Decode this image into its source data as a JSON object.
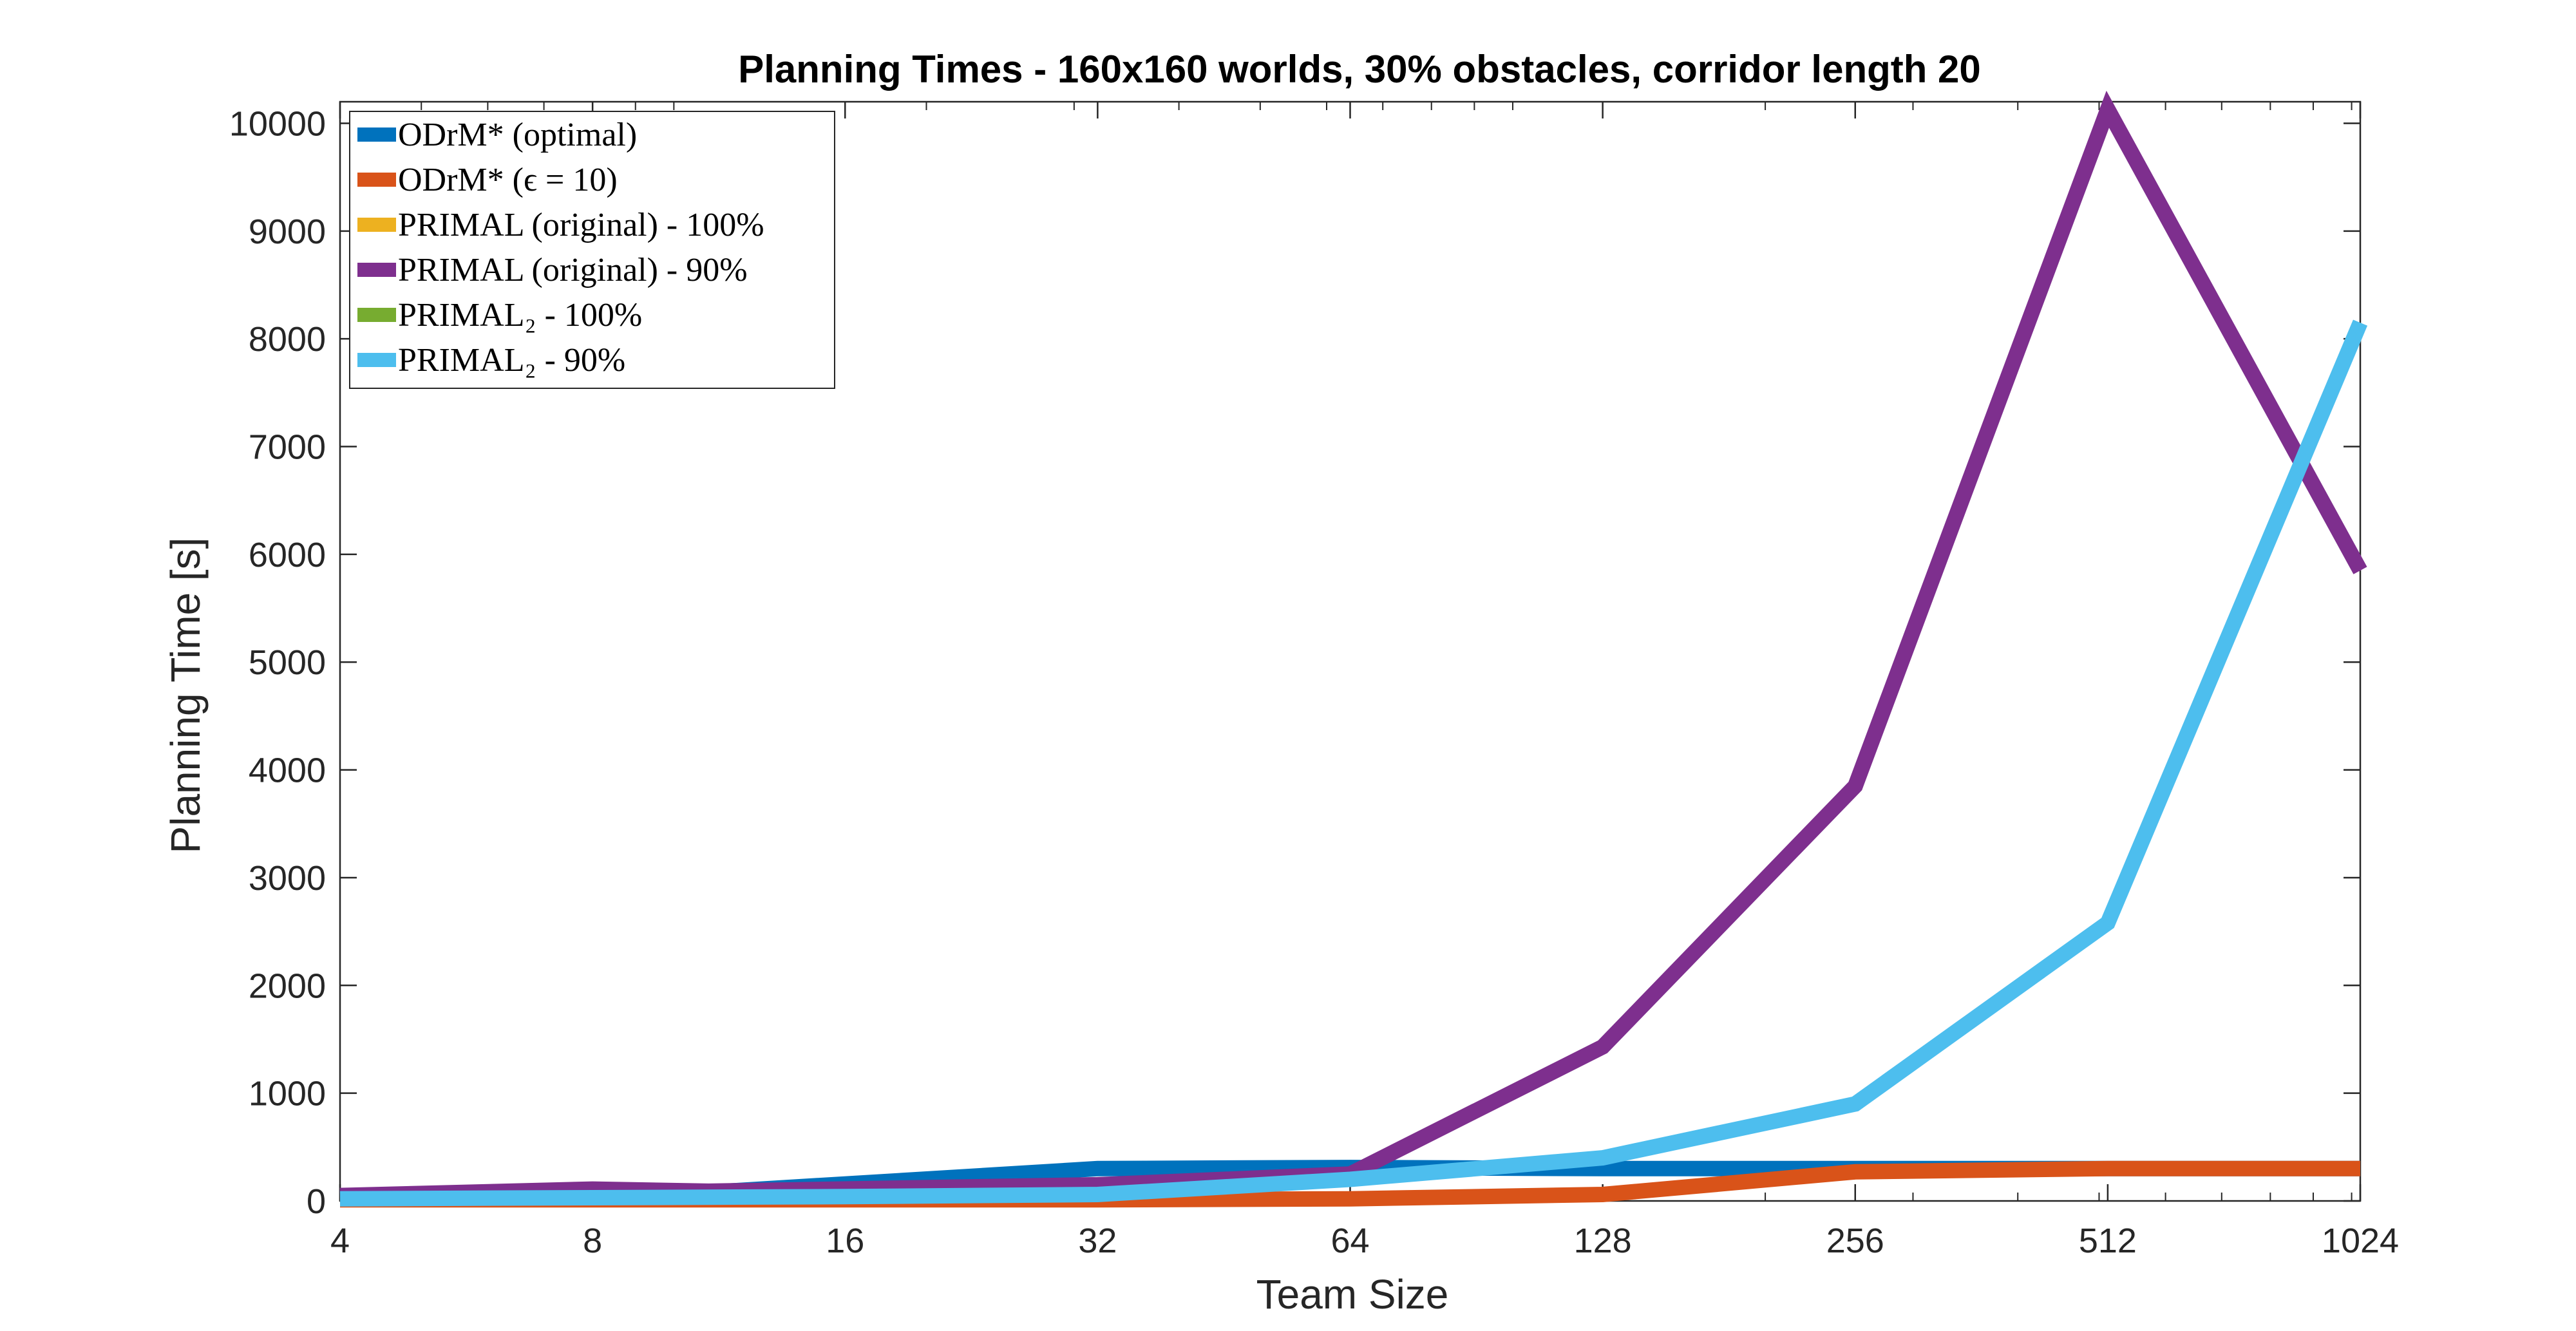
{
  "chart_data": {
    "type": "line",
    "title": "Planning Times - 160x160 worlds, 30% obstacles, corridor length 20",
    "xlabel": "Team Size",
    "ylabel": "Planning Time [s]",
    "x_scale": "log2",
    "x": [
      4,
      8,
      16,
      32,
      64,
      128,
      256,
      512,
      1024
    ],
    "x_tick_labels": [
      "4",
      "8",
      "16",
      "32",
      "64",
      "128",
      "256",
      "512",
      "1024"
    ],
    "xlim": [
      4,
      1024
    ],
    "ylim": [
      0,
      10200
    ],
    "y_ticks": [
      0,
      1000,
      2000,
      3000,
      4000,
      5000,
      6000,
      7000,
      8000,
      9000,
      10000
    ],
    "y_tick_labels": [
      "0",
      "1000",
      "2000",
      "3000",
      "4000",
      "5000",
      "6000",
      "7000",
      "8000",
      "9000",
      "10000"
    ],
    "grid": false,
    "legend_position": "top-left",
    "series": [
      {
        "name": "ODrM* (optimal)",
        "color": "#0072BD",
        "points": [
          [
            4,
            30
          ],
          [
            8,
            60
          ],
          [
            11,
            80
          ],
          [
            32,
            300
          ],
          [
            64,
            310
          ],
          [
            128,
            300
          ],
          [
            256,
            300
          ],
          [
            512,
            300
          ],
          [
            1024,
            300
          ]
        ]
      },
      {
        "name": "ODrM* (ϵ = 10)",
        "color": "#D95319",
        "points": [
          [
            4,
            10
          ],
          [
            8,
            10
          ],
          [
            16,
            10
          ],
          [
            32,
            10
          ],
          [
            64,
            20
          ],
          [
            128,
            60
          ],
          [
            256,
            270
          ],
          [
            512,
            300
          ],
          [
            1024,
            300
          ]
        ]
      },
      {
        "name": "PRIMAL (original) - 100%",
        "color": "#EDB120",
        "points": []
      },
      {
        "name": "PRIMAL (original) - 90%",
        "color": "#7E2F8E",
        "points": [
          [
            4,
            50
          ],
          [
            8,
            110
          ],
          [
            11,
            90
          ],
          [
            32,
            150
          ],
          [
            64,
            250
          ],
          [
            128,
            1430
          ],
          [
            256,
            3850
          ],
          [
            512,
            10130
          ],
          [
            1024,
            5850
          ]
        ]
      },
      {
        "name": "PRIMAL₂ - 100%",
        "color": "#77AC30",
        "points": []
      },
      {
        "name": "PRIMAL₂ - 90%",
        "color": "#4DBEEE",
        "points": [
          [
            4,
            20
          ],
          [
            8,
            30
          ],
          [
            16,
            40
          ],
          [
            32,
            60
          ],
          [
            64,
            200
          ],
          [
            128,
            400
          ],
          [
            256,
            900
          ],
          [
            512,
            2580
          ],
          [
            1024,
            8150
          ]
        ]
      }
    ]
  }
}
